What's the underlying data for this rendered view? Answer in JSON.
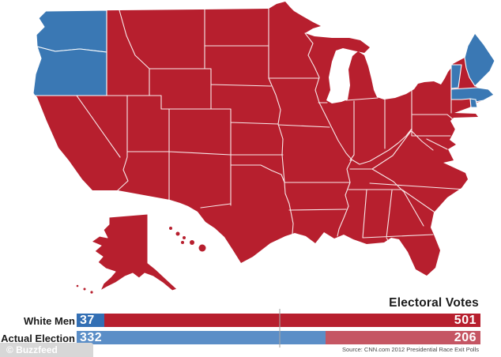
{
  "map": {
    "region": "United States electoral map with Alaska and Hawaii",
    "party_colors": {
      "democrat": "#3a78b4",
      "republican": "#b71f2e",
      "border": "#ffffff"
    },
    "democrat_states": [
      "WA",
      "OR",
      "VT",
      "ME",
      "MA",
      "RI"
    ],
    "republican_fill_note": "all other states red"
  },
  "chart_data": {
    "type": "bar",
    "orientation": "horizontal",
    "title": "Electoral Votes",
    "categories": [
      "White Men",
      "Actual Election"
    ],
    "series": [
      {
        "name": "Democrat",
        "values": [
          37,
          332
        ],
        "colors": [
          "#336fb4",
          "#5b8ec7"
        ]
      },
      {
        "name": "Republican",
        "values": [
          501,
          206
        ],
        "colors": [
          "#b71f2e",
          "#c55663"
        ]
      }
    ],
    "total_per_row": 538,
    "threshold": 270,
    "value_label_color": "#ffffff",
    "legend_position": "none",
    "grid": false
  },
  "footer": {
    "source": "Source: CNN.com 2012 Presidential Race Exit Polls",
    "watermark": "© Buzzfeed"
  }
}
